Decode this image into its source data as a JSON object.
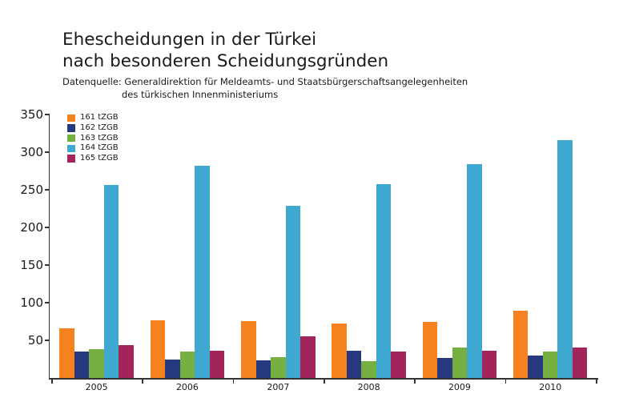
{
  "chart_data": {
    "type": "bar",
    "title_line1": "Ehescheidungen in der Türkei",
    "title_line2": "nach besonderen Scheidungsgründen",
    "subtitle_line1": "Datenquelle: Generaldirektion für Meldeamts- und Staatsbürgerschaftsangelegenheiten",
    "subtitle_line2": "des türkischen Innenministeriums",
    "categories": [
      "2005",
      "2006",
      "2007",
      "2008",
      "2009",
      "2010"
    ],
    "series": [
      {
        "name": "161 tZGB",
        "color": "#f5821f",
        "values": [
          66,
          77,
          76,
          72,
          75,
          89
        ]
      },
      {
        "name": "162 tZGB",
        "color": "#27397e",
        "values": [
          35,
          24,
          23,
          36,
          27,
          30
        ]
      },
      {
        "name": "163 tZGB",
        "color": "#76b041",
        "values": [
          38,
          35,
          28,
          22,
          40,
          35
        ]
      },
      {
        "name": "164 tZGB",
        "color": "#3fa8d1",
        "values": [
          256,
          282,
          229,
          257,
          284,
          316
        ]
      },
      {
        "name": "165 tZGB",
        "color": "#a3245b",
        "values": [
          44,
          36,
          55,
          35,
          36,
          41
        ]
      }
    ],
    "xlabel": "",
    "ylabel": "",
    "ylim": [
      0,
      350
    ],
    "yticks": [
      50,
      100,
      150,
      200,
      250,
      300,
      350
    ],
    "legend_position": "top-left",
    "grid": false,
    "axis_color": "#333333",
    "text_color": "#1a1a1a",
    "background_color": "#ffffff"
  }
}
